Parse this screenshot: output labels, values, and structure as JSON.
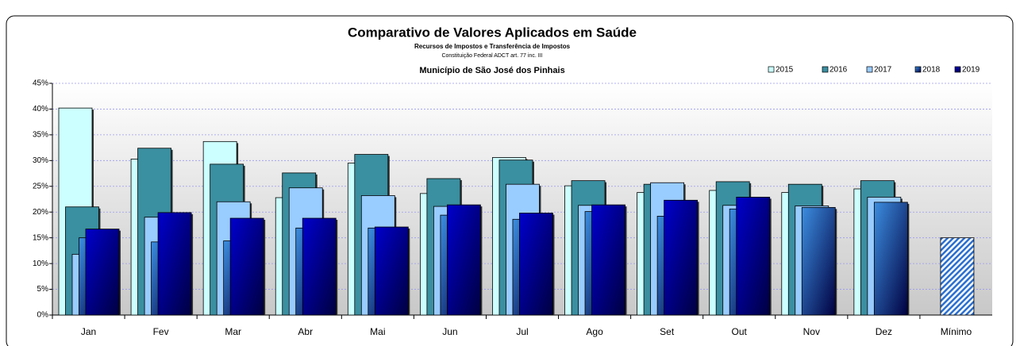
{
  "chart_data": {
    "type": "overlap-bar",
    "title": "Comparativo de Valores Aplicados em Saúde",
    "subtitle": "Recursos de Impostos e Transferência de Impostos",
    "note": "Constituição Federal ADCT art. 77 inc. III",
    "location": "Município de São José dos Pinhais",
    "categories": [
      "Jan",
      "Fev",
      "Mar",
      "Abr",
      "Mai",
      "Jun",
      "Jul",
      "Ago",
      "Set",
      "Out",
      "Nov",
      "Dez",
      "Mínimo"
    ],
    "series": [
      {
        "name": "2015",
        "color": "#ccffff",
        "values": [
          40.2,
          30.3,
          33.7,
          22.8,
          29.5,
          23.6,
          30.6,
          25.1,
          23.8,
          24.2,
          23.8,
          24.5,
          null
        ]
      },
      {
        "name": "2016",
        "color": "#3a8fa0",
        "values": [
          21,
          32.4,
          29.3,
          27.6,
          31.2,
          26.5,
          30.1,
          26.1,
          25.4,
          25.9,
          25.4,
          26.1,
          null
        ]
      },
      {
        "name": "2017",
        "color": "#99ccff",
        "values": [
          11.8,
          19,
          22,
          24.7,
          23.2,
          21.1,
          25.4,
          21.3,
          25.7,
          21.3,
          21.2,
          22.9,
          null
        ]
      },
      {
        "name": "2018",
        "color": "#3c8ee0",
        "values": [
          15,
          14.2,
          14.4,
          16.9,
          16.9,
          19.4,
          18.6,
          20.1,
          19.2,
          20.6,
          20.9,
          21.9,
          null
        ]
      },
      {
        "name": "2019",
        "color": "#0000cc",
        "values": [
          16.7,
          19.9,
          18.8,
          18.8,
          17.1,
          21.4,
          19.8,
          21.4,
          22.3,
          22.9,
          null,
          null,
          null
        ]
      }
    ],
    "minimum_value": 15,
    "minimum_color": "#3c8ee0",
    "ylim": [
      0,
      45
    ],
    "yticks": [
      {
        "value": 0,
        "label": "0%"
      },
      {
        "value": 5,
        "label": "5%"
      },
      {
        "value": 10,
        "label": "10%"
      },
      {
        "value": 15,
        "label": "15%"
      },
      {
        "value": 20,
        "label": "20%"
      },
      {
        "value": 25,
        "label": "25%"
      },
      {
        "value": 30,
        "label": "30%"
      },
      {
        "value": 35,
        "label": "35%"
      },
      {
        "value": 40,
        "label": "40%"
      },
      {
        "value": 45,
        "label": "45%"
      }
    ],
    "grid": true,
    "legend": "top-right"
  }
}
